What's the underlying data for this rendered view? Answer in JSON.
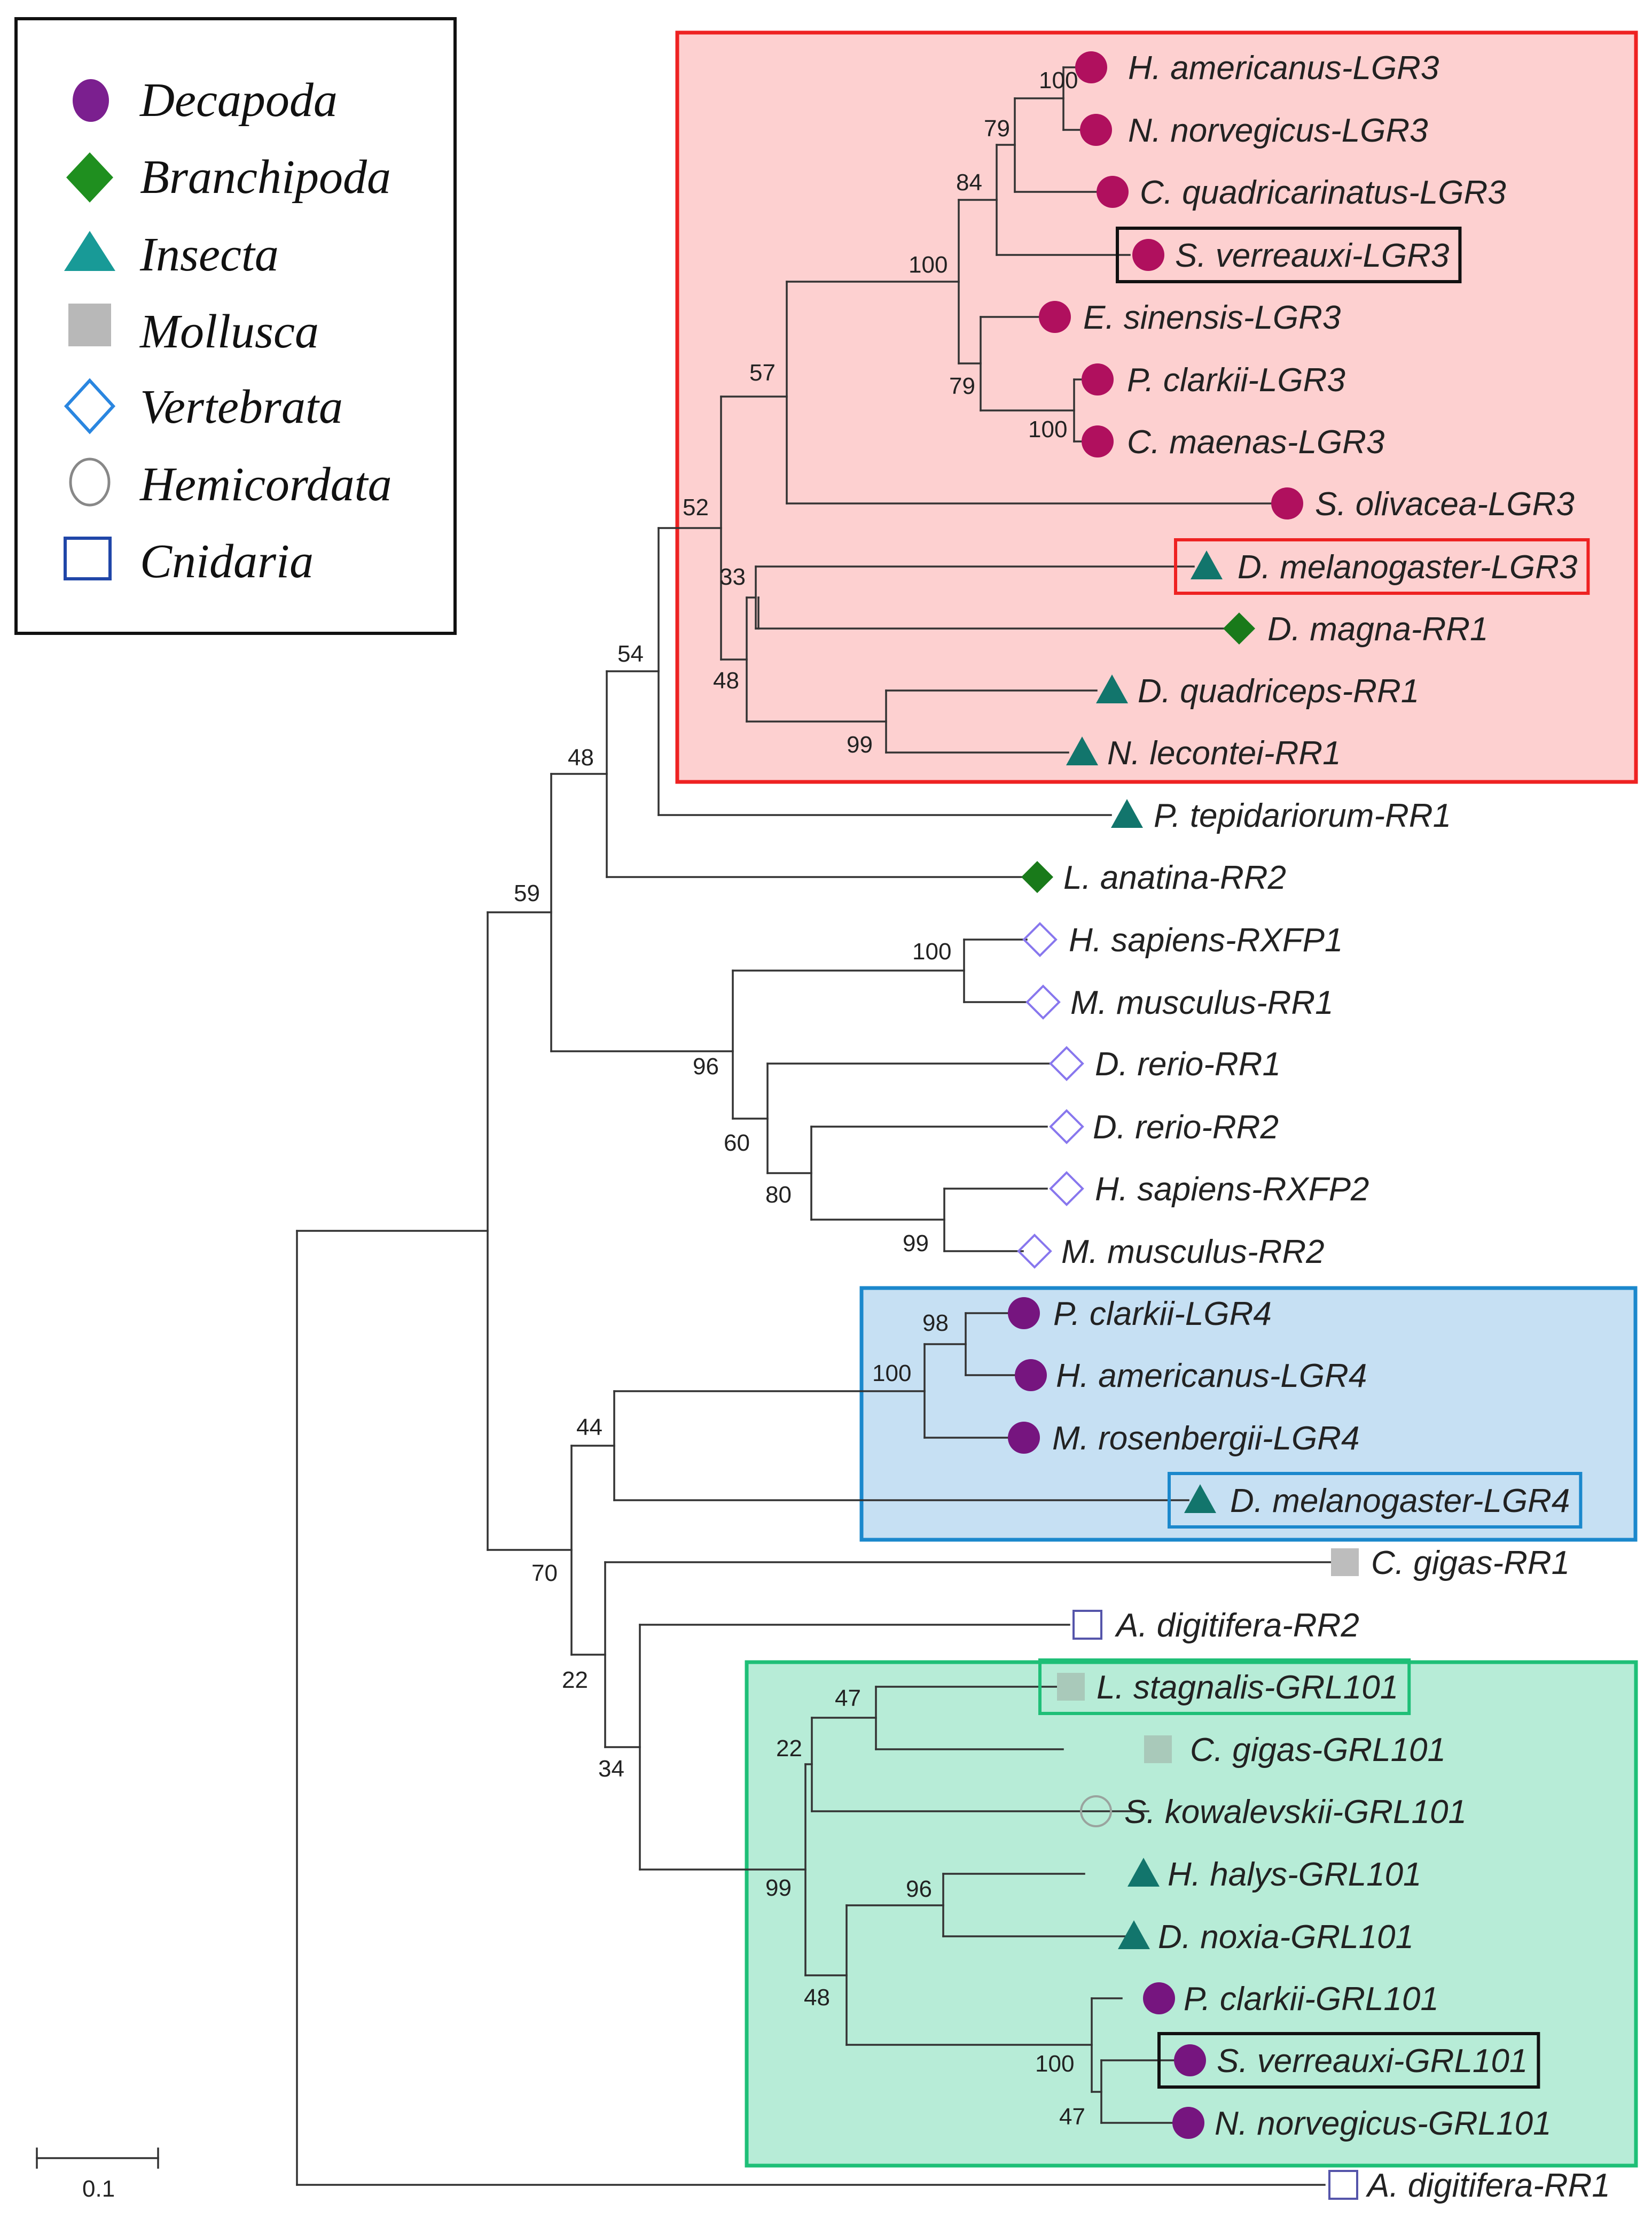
{
  "legend": [
    {
      "key": "decapoda",
      "label": "Decapoda",
      "shape": "circle-icon",
      "color": "#7b1f8f"
    },
    {
      "key": "branchipoda",
      "label": "Branchipoda",
      "shape": "diamond-icon",
      "color": "#1f8f1f"
    },
    {
      "key": "insecta",
      "label": "Insecta",
      "shape": "triangle-icon",
      "color": "#189a97"
    },
    {
      "key": "mollusca",
      "label": "Mollusca",
      "shape": "square-icon",
      "color": "#b8b8b8"
    },
    {
      "key": "vertebrata",
      "label": "Vertebrata",
      "shape": "diamond-outline-icon",
      "color": "#2a86e0"
    },
    {
      "key": "hemicordata",
      "label": "Hemicordata",
      "shape": "circle-outline-icon",
      "color": "#888888"
    },
    {
      "key": "cnidaria",
      "label": "Cnidaria",
      "shape": "square-outline-icon",
      "color": "#2046a8"
    }
  ],
  "colors": {
    "lgr3_box_fill": "#fdd0d0",
    "lgr3_box_stroke": "#ee2222",
    "lgr4_box_fill": "#c6e0f3",
    "lgr4_box_stroke": "#1b88cc",
    "grl101_box_fill": "#b7ecd7",
    "grl101_box_stroke": "#1ebf77",
    "tip_decapoda_lgr3": "#b0105e",
    "tip_decapoda": "#76157f",
    "tip_insecta": "#12756c",
    "tip_branchipoda": "#197a1a",
    "tip_vertebrata": "#8877ee",
    "tip_mollusca": "#a9c9ba",
    "tip_mollusca_grey": "#bdbdbd",
    "tip_hemicordata": "#9aa39e",
    "tip_cnidaria": "#5555aa"
  },
  "tree": {
    "taxa": [
      {
        "id": "hamLGR3",
        "label": "H. americanus-LGR3",
        "marker": "circle",
        "color": "tip_decapoda_lgr3"
      },
      {
        "id": "nnoLGR3",
        "label": "N. norvegicus-LGR3",
        "marker": "circle",
        "color": "tip_decapoda_lgr3"
      },
      {
        "id": "cquLGR3",
        "label": "C. quadricarinatus-LGR3",
        "marker": "circle",
        "color": "tip_decapoda_lgr3"
      },
      {
        "id": "sveLGR3",
        "label": "S. verreauxi-LGR3",
        "marker": "circle",
        "color": "tip_decapoda_lgr3",
        "highlight": "black"
      },
      {
        "id": "esiLGR3",
        "label": "E. sinensis-LGR3",
        "marker": "circle",
        "color": "tip_decapoda_lgr3"
      },
      {
        "id": "pclLGR3",
        "label": "P. clarkii-LGR3",
        "marker": "circle",
        "color": "tip_decapoda_lgr3"
      },
      {
        "id": "cmaLGR3",
        "label": "C. maenas-LGR3",
        "marker": "circle",
        "color": "tip_decapoda_lgr3"
      },
      {
        "id": "solLGR3",
        "label": "S. olivacea-LGR3",
        "marker": "circle",
        "color": "tip_decapoda_lgr3"
      },
      {
        "id": "dmeLGR3",
        "label": "D. melanogaster-LGR3",
        "marker": "triangle",
        "color": "tip_insecta",
        "highlight": "red"
      },
      {
        "id": "dmaRR1",
        "label": "D. magna-RR1",
        "marker": "diamond",
        "color": "tip_branchipoda"
      },
      {
        "id": "dquRR1",
        "label": "D. quadriceps-RR1",
        "marker": "triangle",
        "color": "tip_insecta"
      },
      {
        "id": "nleRR1",
        "label": "N. lecontei-RR1",
        "marker": "triangle",
        "color": "tip_insecta"
      },
      {
        "id": "pteRR1",
        "label": "P. tepidariorum-RR1",
        "marker": "triangle",
        "color": "tip_insecta"
      },
      {
        "id": "lanRR2",
        "label": "L. anatina-RR2",
        "marker": "diamond",
        "color": "tip_branchipoda"
      },
      {
        "id": "hsaRXFP1",
        "label": "H. sapiens-RXFP1",
        "marker": "diamond-outline",
        "color": "tip_vertebrata"
      },
      {
        "id": "mmuRR1",
        "label": "M. musculus-RR1",
        "marker": "diamond-outline",
        "color": "tip_vertebrata"
      },
      {
        "id": "dreRR1",
        "label": "D. rerio-RR1",
        "marker": "diamond-outline",
        "color": "tip_vertebrata"
      },
      {
        "id": "dreRR2",
        "label": "D. rerio-RR2",
        "marker": "diamond-outline",
        "color": "tip_vertebrata"
      },
      {
        "id": "hsaRXFP2",
        "label": "H. sapiens-RXFP2",
        "marker": "diamond-outline",
        "color": "tip_vertebrata"
      },
      {
        "id": "mmuRR2",
        "label": "M. musculus-RR2",
        "marker": "diamond-outline",
        "color": "tip_vertebrata"
      },
      {
        "id": "pclLGR4",
        "label": "P. clarkii-LGR4",
        "marker": "circle",
        "color": "tip_decapoda"
      },
      {
        "id": "hamLGR4",
        "label": "H. americanus-LGR4",
        "marker": "circle",
        "color": "tip_decapoda"
      },
      {
        "id": "mroLGR4",
        "label": "M. rosenbergii-LGR4",
        "marker": "circle",
        "color": "tip_decapoda"
      },
      {
        "id": "dmeLGR4",
        "label": "D. melanogaster-LGR4",
        "marker": "triangle",
        "color": "tip_insecta",
        "highlight": "blue"
      },
      {
        "id": "cgiRR1",
        "label": "C. gigas-RR1",
        "marker": "square",
        "color": "tip_mollusca_grey"
      },
      {
        "id": "adiRR2",
        "label": "A. digitifera-RR2",
        "marker": "square-outline",
        "color": "tip_cnidaria"
      },
      {
        "id": "lstGRL101",
        "label": "L. stagnalis-GRL101",
        "marker": "square",
        "color": "tip_mollusca",
        "highlight": "green"
      },
      {
        "id": "cgiGRL101",
        "label": "C. gigas-GRL101",
        "marker": "square",
        "color": "tip_mollusca"
      },
      {
        "id": "skoGRL101",
        "label": "S. kowalevskii-GRL101",
        "marker": "circle-outline",
        "color": "tip_hemicordata"
      },
      {
        "id": "hhaGRL101",
        "label": "H. halys-GRL101",
        "marker": "triangle",
        "color": "tip_insecta"
      },
      {
        "id": "dnoGRL101",
        "label": "D. noxia-GRL101",
        "marker": "triangle",
        "color": "tip_insecta"
      },
      {
        "id": "pclGRL101",
        "label": "P. clarkii-GRL101",
        "marker": "circle",
        "color": "tip_decapoda"
      },
      {
        "id": "sveGRL101",
        "label": "S. verreauxi-GRL101",
        "marker": "circle",
        "color": "tip_decapoda",
        "highlight": "black"
      },
      {
        "id": "nnoGRL101",
        "label": "N. norvegicus-GRL101",
        "marker": "circle",
        "color": "tip_decapoda"
      },
      {
        "id": "adiRR1",
        "label": "A. digitifera-RR1",
        "marker": "square-outline",
        "color": "tip_cnidaria"
      }
    ],
    "bootstrap": [
      "100",
      "79",
      "84",
      "100",
      "79",
      "100",
      "57",
      "52",
      "33",
      "48",
      "99",
      "54",
      "48",
      "59",
      "100",
      "96",
      "60",
      "80",
      "99",
      "98",
      "100",
      "44",
      "70",
      "22",
      "34",
      "47",
      "22",
      "96",
      "99",
      "48",
      "100",
      "47"
    ],
    "clade_boxes": [
      {
        "name": "LGR3 clade",
        "fill": "lgr3_box_fill",
        "stroke": "lgr3_box_stroke"
      },
      {
        "name": "LGR4 clade",
        "fill": "lgr4_box_fill",
        "stroke": "lgr4_box_stroke"
      },
      {
        "name": "GRL101 clade",
        "fill": "grl101_box_fill",
        "stroke": "grl101_box_stroke"
      }
    ]
  },
  "scale_bar": {
    "label": "0.1"
  }
}
